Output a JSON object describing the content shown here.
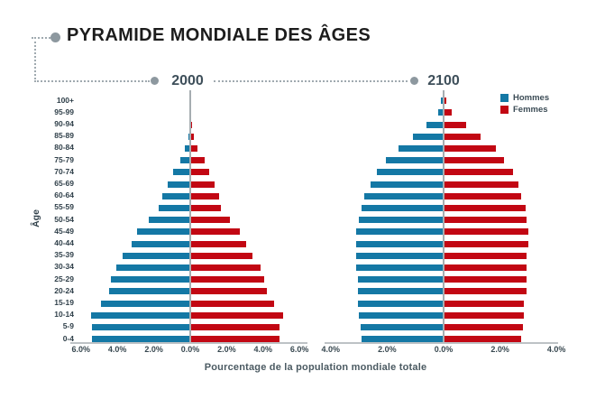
{
  "title": "PYRAMIDE MONDIALE DES ÂGES",
  "colors": {
    "hommes": "#1478a5",
    "femmes": "#c20713",
    "accent_dot": "#8d989f"
  },
  "legend": {
    "items": [
      {
        "label": "Hommes",
        "color": "#1478a5"
      },
      {
        "label": "Femmes",
        "color": "#c20713"
      }
    ]
  },
  "axis": {
    "y_title": "Âge",
    "x_title": "Pourcentage de la population mondiale totale"
  },
  "chart_data": [
    {
      "type": "bar",
      "subtype": "population-pyramid",
      "title": "2000",
      "xlim": [
        -6,
        6
      ],
      "grid": false,
      "legend_position": "top-right",
      "x_ticks": [
        "6.0%",
        "4.0%",
        "2.0%",
        "0.0%",
        "2.0%",
        "4.0%",
        "6.0%"
      ],
      "categories": [
        "100+",
        "95-99",
        "90-94",
        "85-89",
        "80-84",
        "75-79",
        "70-74",
        "65-69",
        "60-64",
        "55-59",
        "50-54",
        "45-49",
        "40-44",
        "35-39",
        "30-34",
        "25-29",
        "20-24",
        "15-19",
        "10-14",
        "5-9",
        "0-4"
      ],
      "series": [
        {
          "name": "Hommes",
          "values": [
            0.01,
            0.02,
            0.05,
            0.1,
            0.28,
            0.55,
            0.95,
            1.25,
            1.55,
            1.75,
            2.3,
            2.9,
            3.2,
            3.7,
            4.05,
            4.35,
            4.45,
            4.9,
            5.45,
            5.4,
            5.4
          ]
        },
        {
          "name": "Femmes",
          "values": [
            0.02,
            0.04,
            0.1,
            0.2,
            0.4,
            0.78,
            1.05,
            1.35,
            1.6,
            1.7,
            2.2,
            2.7,
            3.05,
            3.4,
            3.85,
            4.05,
            4.2,
            4.6,
            5.1,
            4.9,
            4.9
          ]
        }
      ]
    },
    {
      "type": "bar",
      "subtype": "population-pyramid",
      "title": "2100",
      "xlim": [
        -4,
        4
      ],
      "grid": false,
      "x_ticks": [
        "4.0%",
        "2.0%",
        "0.0%",
        "2.0%",
        "4.0%"
      ],
      "categories": [
        "100+",
        "95-99",
        "90-94",
        "85-89",
        "80-84",
        "75-79",
        "70-74",
        "65-69",
        "60-64",
        "55-59",
        "50-54",
        "45-49",
        "40-44",
        "35-39",
        "30-34",
        "25-29",
        "20-24",
        "15-19",
        "10-14",
        "5-9",
        "0-4"
      ],
      "series": [
        {
          "name": "Hommes",
          "values": [
            0.1,
            0.2,
            0.6,
            1.1,
            1.6,
            2.05,
            2.35,
            2.6,
            2.8,
            2.9,
            3.0,
            3.1,
            3.1,
            3.1,
            3.1,
            3.05,
            3.05,
            3.05,
            3.0,
            2.95,
            2.9
          ]
        },
        {
          "name": "Femmes",
          "values": [
            0.1,
            0.3,
            0.8,
            1.3,
            1.85,
            2.15,
            2.45,
            2.65,
            2.75,
            2.9,
            2.95,
            3.0,
            3.0,
            2.95,
            2.95,
            2.95,
            2.95,
            2.85,
            2.85,
            2.8,
            2.75
          ]
        }
      ]
    }
  ]
}
